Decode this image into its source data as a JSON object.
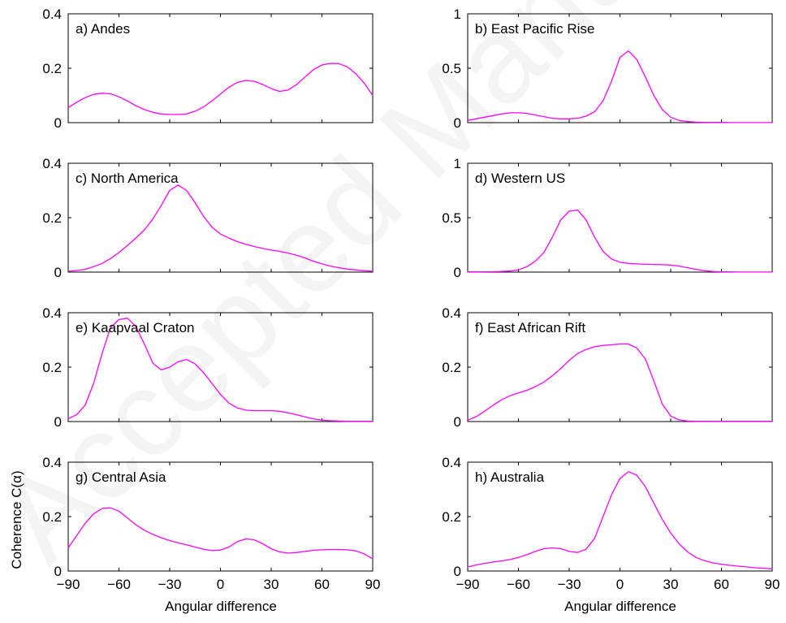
{
  "colors": {
    "line": "#ff00ff",
    "axes": "#000000",
    "watermark": "#f2f2f2"
  },
  "figure": {
    "xlabel": "Angular difference",
    "ylabel": "Coherence C(α)",
    "watermark": "Accepted Manuscript",
    "xticks": [
      -90,
      -60,
      -30,
      0,
      30,
      60,
      90
    ],
    "xtick_labels": [
      "−90",
      "−60",
      "−30",
      "0",
      "30",
      "60",
      "90"
    ]
  },
  "chart_data": [
    {
      "type": "line",
      "label": "a) Andes",
      "xlim": [
        -90,
        90
      ],
      "ylim": [
        0,
        0.4
      ],
      "yticks": [
        0,
        0.2,
        0.4
      ],
      "ytick_labels": [
        "0",
        "0.2",
        "0.4"
      ],
      "x": [
        -90,
        -85,
        -80,
        -75,
        -70,
        -65,
        -60,
        -55,
        -50,
        -45,
        -40,
        -35,
        -30,
        -25,
        -20,
        -15,
        -10,
        -5,
        0,
        5,
        10,
        15,
        20,
        25,
        30,
        35,
        40,
        45,
        50,
        55,
        60,
        65,
        70,
        75,
        80,
        85,
        90
      ],
      "y": [
        0.055,
        0.075,
        0.092,
        0.104,
        0.108,
        0.106,
        0.095,
        0.08,
        0.062,
        0.048,
        0.038,
        0.032,
        0.03,
        0.03,
        0.032,
        0.042,
        0.058,
        0.08,
        0.105,
        0.13,
        0.148,
        0.155,
        0.152,
        0.14,
        0.125,
        0.115,
        0.12,
        0.14,
        0.168,
        0.195,
        0.212,
        0.218,
        0.217,
        0.205,
        0.18,
        0.145,
        0.1
      ]
    },
    {
      "type": "line",
      "label": "b) East Pacific Rise",
      "xlim": [
        -90,
        90
      ],
      "ylim": [
        0,
        1
      ],
      "yticks": [
        0,
        0.5,
        1
      ],
      "ytick_labels": [
        "0",
        "0.5",
        "1"
      ],
      "x": [
        -90,
        -85,
        -80,
        -75,
        -70,
        -65,
        -60,
        -55,
        -50,
        -45,
        -40,
        -35,
        -30,
        -25,
        -20,
        -15,
        -10,
        -5,
        0,
        5,
        10,
        15,
        20,
        25,
        30,
        35,
        40,
        45,
        50,
        55,
        60,
        65,
        70,
        75,
        80,
        85,
        90
      ],
      "y": [
        0.02,
        0.035,
        0.05,
        0.065,
        0.08,
        0.09,
        0.09,
        0.085,
        0.07,
        0.055,
        0.04,
        0.035,
        0.035,
        0.04,
        0.06,
        0.1,
        0.2,
        0.38,
        0.6,
        0.66,
        0.58,
        0.42,
        0.25,
        0.12,
        0.05,
        0.02,
        0.01,
        0.005,
        0.003,
        0.002,
        0.002,
        0.001,
        0.001,
        0.001,
        0.001,
        0.001,
        0.001
      ]
    },
    {
      "type": "line",
      "label": "c) North America",
      "xlim": [
        -90,
        90
      ],
      "ylim": [
        0,
        0.4
      ],
      "yticks": [
        0,
        0.2,
        0.4
      ],
      "ytick_labels": [
        "0",
        "0.2",
        "0.4"
      ],
      "x": [
        -90,
        -85,
        -80,
        -75,
        -70,
        -65,
        -60,
        -55,
        -50,
        -45,
        -40,
        -35,
        -30,
        -25,
        -20,
        -15,
        -10,
        -5,
        0,
        5,
        10,
        15,
        20,
        25,
        30,
        35,
        40,
        45,
        50,
        55,
        60,
        65,
        70,
        75,
        80,
        85,
        90
      ],
      "y": [
        0.003,
        0.006,
        0.01,
        0.02,
        0.032,
        0.05,
        0.072,
        0.098,
        0.125,
        0.155,
        0.195,
        0.245,
        0.3,
        0.32,
        0.3,
        0.255,
        0.205,
        0.165,
        0.14,
        0.125,
        0.112,
        0.102,
        0.094,
        0.087,
        0.081,
        0.076,
        0.07,
        0.062,
        0.052,
        0.04,
        0.03,
        0.022,
        0.016,
        0.011,
        0.008,
        0.005,
        0.003
      ]
    },
    {
      "type": "line",
      "label": "d) Western US",
      "xlim": [
        -90,
        90
      ],
      "ylim": [
        0,
        1
      ],
      "yticks": [
        0,
        0.5,
        1
      ],
      "ytick_labels": [
        "0",
        "0.5",
        "1"
      ],
      "x": [
        -90,
        -85,
        -80,
        -75,
        -70,
        -65,
        -60,
        -55,
        -50,
        -45,
        -40,
        -35,
        -30,
        -25,
        -20,
        -15,
        -10,
        -5,
        0,
        5,
        10,
        15,
        20,
        25,
        30,
        35,
        40,
        45,
        50,
        55,
        60,
        65,
        70,
        75,
        80,
        85,
        90
      ],
      "y": [
        0.002,
        0.002,
        0.003,
        0.004,
        0.006,
        0.01,
        0.02,
        0.05,
        0.1,
        0.18,
        0.32,
        0.48,
        0.56,
        0.57,
        0.48,
        0.32,
        0.19,
        0.12,
        0.09,
        0.08,
        0.075,
        0.072,
        0.07,
        0.068,
        0.065,
        0.055,
        0.04,
        0.025,
        0.012,
        0.006,
        0.003,
        0.002,
        0.001,
        0.001,
        0.001,
        0.001,
        0.001
      ]
    },
    {
      "type": "line",
      "label": "e) Kaapvaal Craton",
      "xlim": [
        -90,
        90
      ],
      "ylim": [
        0,
        0.4
      ],
      "yticks": [
        0,
        0.2,
        0.4
      ],
      "ytick_labels": [
        "0",
        "0.2",
        "0.4"
      ],
      "x": [
        -90,
        -85,
        -80,
        -75,
        -70,
        -65,
        -60,
        -55,
        -50,
        -45,
        -40,
        -35,
        -30,
        -25,
        -20,
        -15,
        -10,
        -5,
        0,
        5,
        10,
        15,
        20,
        25,
        30,
        35,
        40,
        45,
        50,
        55,
        60,
        65,
        70,
        75,
        80,
        85,
        90
      ],
      "y": [
        0.01,
        0.025,
        0.06,
        0.14,
        0.25,
        0.345,
        0.375,
        0.38,
        0.35,
        0.285,
        0.215,
        0.19,
        0.2,
        0.22,
        0.228,
        0.212,
        0.18,
        0.14,
        0.1,
        0.068,
        0.05,
        0.042,
        0.04,
        0.04,
        0.04,
        0.038,
        0.032,
        0.025,
        0.017,
        0.01,
        0.005,
        0.003,
        0.002,
        0.001,
        0.001,
        0.001,
        0.001
      ]
    },
    {
      "type": "line",
      "label": "f) East African Rift",
      "xlim": [
        -90,
        90
      ],
      "ylim": [
        0,
        0.4
      ],
      "yticks": [
        0,
        0.2,
        0.4
      ],
      "ytick_labels": [
        "0",
        "0.2",
        "0.4"
      ],
      "x": [
        -90,
        -85,
        -80,
        -75,
        -70,
        -65,
        -60,
        -55,
        -50,
        -45,
        -40,
        -35,
        -30,
        -25,
        -20,
        -15,
        -10,
        -5,
        0,
        5,
        10,
        15,
        20,
        25,
        30,
        35,
        40,
        45,
        50,
        55,
        60,
        65,
        70,
        75,
        80,
        85,
        90
      ],
      "y": [
        0.005,
        0.018,
        0.038,
        0.06,
        0.08,
        0.095,
        0.105,
        0.115,
        0.128,
        0.145,
        0.168,
        0.195,
        0.225,
        0.25,
        0.265,
        0.275,
        0.28,
        0.282,
        0.285,
        0.285,
        0.27,
        0.23,
        0.15,
        0.065,
        0.02,
        0.006,
        0.002,
        0.001,
        0.001,
        0.001,
        0.001,
        0.001,
        0.001,
        0.001,
        0.001,
        0.001,
        0.001
      ]
    },
    {
      "type": "line",
      "label": "g) Central Asia",
      "xlim": [
        -90,
        90
      ],
      "ylim": [
        0,
        0.4
      ],
      "yticks": [
        0,
        0.2,
        0.4
      ],
      "ytick_labels": [
        "0",
        "0.2",
        "0.4"
      ],
      "x": [
        -90,
        -85,
        -80,
        -75,
        -70,
        -65,
        -60,
        -55,
        -50,
        -45,
        -40,
        -35,
        -30,
        -25,
        -20,
        -15,
        -10,
        -5,
        0,
        5,
        10,
        15,
        20,
        25,
        30,
        35,
        40,
        45,
        50,
        55,
        60,
        65,
        70,
        75,
        80,
        85,
        90
      ],
      "y": [
        0.085,
        0.13,
        0.175,
        0.21,
        0.23,
        0.232,
        0.22,
        0.195,
        0.17,
        0.15,
        0.135,
        0.122,
        0.112,
        0.104,
        0.096,
        0.088,
        0.08,
        0.075,
        0.077,
        0.088,
        0.108,
        0.118,
        0.115,
        0.1,
        0.082,
        0.07,
        0.066,
        0.068,
        0.072,
        0.076,
        0.078,
        0.079,
        0.079,
        0.078,
        0.074,
        0.063,
        0.045
      ]
    },
    {
      "type": "line",
      "label": "h) Australia",
      "xlim": [
        -90,
        90
      ],
      "ylim": [
        0,
        0.4
      ],
      "yticks": [
        0,
        0.2,
        0.4
      ],
      "ytick_labels": [
        "0",
        "0.2",
        "0.4"
      ],
      "x": [
        -90,
        -85,
        -80,
        -75,
        -70,
        -65,
        -60,
        -55,
        -50,
        -45,
        -40,
        -35,
        -30,
        -25,
        -20,
        -15,
        -10,
        -5,
        0,
        5,
        10,
        15,
        20,
        25,
        30,
        35,
        40,
        45,
        50,
        55,
        60,
        65,
        70,
        75,
        80,
        85,
        90
      ],
      "y": [
        0.015,
        0.022,
        0.028,
        0.033,
        0.037,
        0.042,
        0.05,
        0.06,
        0.072,
        0.082,
        0.085,
        0.082,
        0.072,
        0.068,
        0.08,
        0.12,
        0.2,
        0.28,
        0.34,
        0.365,
        0.352,
        0.31,
        0.25,
        0.19,
        0.14,
        0.1,
        0.07,
        0.05,
        0.038,
        0.03,
        0.025,
        0.021,
        0.018,
        0.015,
        0.012,
        0.01,
        0.008
      ]
    }
  ]
}
